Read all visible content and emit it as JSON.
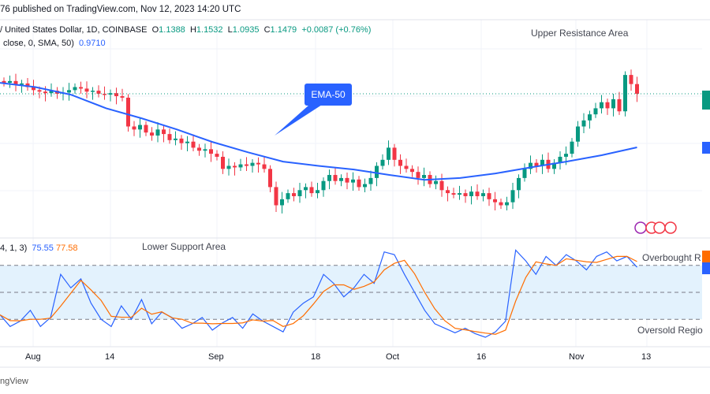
{
  "header": {
    "published": "76 published on TradingView.com, Nov 12, 2023 14:20 UTC"
  },
  "legend": {
    "symbol": "/ United States Dollar, 1D, COINBASE",
    "o_label": "O",
    "open": "1.1388",
    "h_label": "H",
    "high": "1.1532",
    "l_label": "L",
    "low": "1.0935",
    "c_label": "C",
    "close": "1.1479",
    "change": "+0.0087 (+0.76%)"
  },
  "sma": {
    "label": "close, 0, SMA, 50)",
    "value": "0.9710"
  },
  "stoch": {
    "label": "4, 1, 3)",
    "k": "75.55",
    "d": "77.58"
  },
  "annotations": {
    "upper": "Upper Resistance Area",
    "lower": "Lower Support Area",
    "ema": "EMA-50",
    "overbought": "Overbought R",
    "oversold": "Oversold Regio"
  },
  "footer": {
    "brand": "ngView"
  },
  "colors": {
    "up": "#089981",
    "down": "#f23645",
    "ema": "#2962ff",
    "k": "#2962ff",
    "d": "#ff6d00",
    "band": "#e3f2fd",
    "callout": "#2962ff"
  },
  "chart_data": {
    "type": "candlestick",
    "x_ticks": [
      "Aug",
      "14",
      "Sep",
      "18",
      "Oct",
      "16",
      "Nov",
      "13"
    ],
    "closes": [
      1.184,
      1.19,
      1.178,
      1.182,
      1.17,
      1.16,
      1.155,
      1.15,
      1.158,
      1.148,
      1.152,
      1.16,
      1.17,
      1.165,
      1.155,
      1.158,
      1.148,
      1.145,
      1.15,
      1.14,
      1.135,
      1.04,
      1.03,
      1.045,
      1.02,
      1.01,
      1.03,
      1.015,
      0.995,
      1.0,
      0.985,
      0.99,
      0.97,
      0.96,
      0.965,
      0.95,
      0.94,
      0.9,
      0.91,
      0.905,
      0.915,
      0.91,
      0.92,
      0.915,
      0.9,
      0.84,
      0.78,
      0.8,
      0.82,
      0.81,
      0.83,
      0.84,
      0.82,
      0.83,
      0.86,
      0.88,
      0.86,
      0.87,
      0.855,
      0.865,
      0.84,
      0.85,
      0.87,
      0.91,
      0.93,
      0.97,
      0.93,
      0.91,
      0.9,
      0.89,
      0.87,
      0.88,
      0.85,
      0.86,
      0.83,
      0.82,
      0.815,
      0.82,
      0.81,
      0.825,
      0.81,
      0.82,
      0.8,
      0.79,
      0.78,
      0.79,
      0.83,
      0.87,
      0.9,
      0.92,
      0.91,
      0.93,
      0.9,
      0.92,
      0.94,
      0.95,
      0.99,
      1.04,
      1.06,
      1.08,
      1.1,
      1.12,
      1.1,
      1.13,
      1.09,
      1.21,
      1.18,
      1.1479
    ],
    "last_price": 1.1479,
    "ema50": [
      1.184,
      1.17,
      1.145,
      1.1,
      1.067,
      1.03,
      0.989,
      0.955,
      0.924,
      0.91,
      0.898,
      0.88,
      0.864,
      0.87,
      0.885,
      0.905,
      0.924,
      0.945,
      0.971
    ],
    "stoch_k": [
      25,
      12,
      18,
      30,
      12,
      22,
      70,
      55,
      65,
      38,
      20,
      12,
      35,
      20,
      42,
      15,
      28,
      22,
      10,
      15,
      22,
      8,
      16,
      22,
      10,
      26,
      18,
      12,
      6,
      28,
      38,
      45,
      70,
      60,
      45,
      55,
      70,
      60,
      95,
      92,
      70,
      50,
      30,
      15,
      10,
      5,
      10,
      4,
      0,
      6,
      18,
      97,
      85,
      70,
      90,
      80,
      92,
      85,
      75,
      90,
      95,
      85,
      90,
      78
    ],
    "stoch_levels": [
      80,
      50,
      20
    ],
    "stoch_range": [
      0,
      100
    ]
  }
}
